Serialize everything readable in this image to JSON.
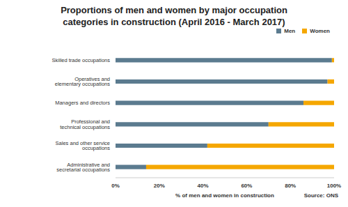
{
  "chart_data": {
    "type": "bar",
    "title": "Proportions of men and women by major occupation categories in construction (April 2016 - March 2017)",
    "orientation": "horizontal",
    "stacked": true,
    "grid": false,
    "legend": "top right",
    "xlabel": "% of men and women in construction",
    "annotation": "Source: ONS",
    "categories": [
      "Skilled trade occupations",
      "Operatives and elementary occupations",
      "Managers and directors",
      "Professional and technical occupations",
      "Sales and other service occupations",
      "Administrative and secretarial occupations"
    ],
    "series": [
      {
        "name": "Men",
        "color": "#5b7b8f",
        "values": [
          99,
          97,
          86,
          70,
          42,
          14
        ]
      },
      {
        "name": "Women",
        "color": "#f5a700",
        "values": [
          1,
          3,
          14,
          30,
          58,
          86
        ]
      }
    ],
    "xlim": [
      0,
      100
    ],
    "xticks": [
      {
        "value": 0,
        "label": "0%"
      },
      {
        "value": 20,
        "label": "20%"
      },
      {
        "value": 40,
        "label": "40%"
      },
      {
        "value": 60,
        "label": "60%"
      },
      {
        "value": 80,
        "label": "80%"
      },
      {
        "value": 100,
        "label": "100%"
      }
    ]
  }
}
